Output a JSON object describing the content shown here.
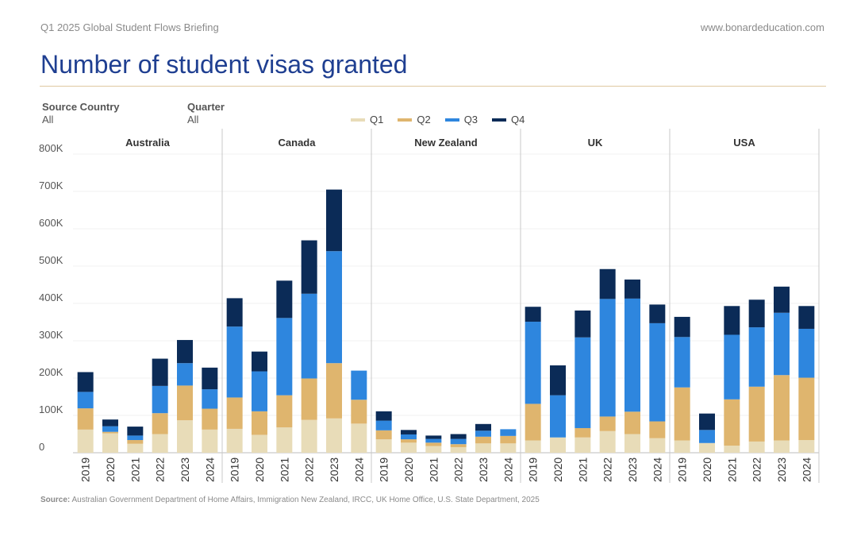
{
  "header": {
    "report_title": "Q1 2025 Global Student Flows Briefing",
    "website": "www.bonardeducation.com",
    "page_title": "Number of student visas granted"
  },
  "filters": [
    {
      "label": "Source Country",
      "value": "All"
    },
    {
      "label": "Quarter",
      "value": "All"
    }
  ],
  "colors": {
    "Q1": "#e8dcb8",
    "Q2": "#dfb56e",
    "Q3": "#2e86de",
    "Q4": "#0b2b57",
    "title": "#1f3f91",
    "rule": "#dfc9a0"
  },
  "source": {
    "label": "Source:",
    "text": "Australian Government Department of Home Affairs, Immigration New Zealand, IRCC, UK Home Office, U.S. State Department, 2025"
  },
  "chart_data": {
    "type": "bar",
    "stacked": true,
    "ylim": [
      0,
      800000
    ],
    "yticks": [
      {
        "value": 0,
        "label": "0"
      },
      {
        "value": 100000,
        "label": "100K"
      },
      {
        "value": 200000,
        "label": "200K"
      },
      {
        "value": 300000,
        "label": "300K"
      },
      {
        "value": 400000,
        "label": "400K"
      },
      {
        "value": 500000,
        "label": "500K"
      },
      {
        "value": 600000,
        "label": "600K"
      },
      {
        "value": 700000,
        "label": "700K"
      },
      {
        "value": 800000,
        "label": "800K"
      }
    ],
    "legend": [
      "Q1",
      "Q2",
      "Q3",
      "Q4"
    ],
    "legend_position": "top",
    "panels": [
      {
        "name": "Australia",
        "years": [
          "2019",
          "2020",
          "2021",
          "2022",
          "2023",
          "2024"
        ],
        "Q1": [
          62000,
          52000,
          24000,
          50000,
          87000,
          62000
        ],
        "Q2": [
          57000,
          4000,
          10000,
          56000,
          93000,
          56000
        ],
        "Q3": [
          44000,
          15000,
          12000,
          73000,
          60000,
          52000
        ],
        "Q4": [
          53000,
          18000,
          24000,
          73000,
          62000,
          58000
        ]
      },
      {
        "name": "Canada",
        "years": [
          "2019",
          "2020",
          "2021",
          "2022",
          "2023",
          "2024"
        ],
        "Q1": [
          64000,
          48000,
          68000,
          88000,
          92000,
          78000
        ],
        "Q2": [
          84000,
          63000,
          86000,
          111000,
          148000,
          64000
        ],
        "Q3": [
          190000,
          107000,
          207000,
          227000,
          300000,
          78000
        ],
        "Q4": [
          76000,
          53000,
          100000,
          143000,
          165000,
          0
        ]
      },
      {
        "name": "New Zealand",
        "years": [
          "2019",
          "2020",
          "2021",
          "2022",
          "2023",
          "2024"
        ],
        "Q1": [
          36000,
          27000,
          18000,
          15000,
          25000,
          25000
        ],
        "Q2": [
          24000,
          9000,
          9000,
          8000,
          18000,
          20000
        ],
        "Q3": [
          26000,
          13000,
          10000,
          14000,
          16000,
          18000
        ],
        "Q4": [
          25000,
          12000,
          9000,
          13000,
          18000,
          0
        ]
      },
      {
        "name": "UK",
        "years": [
          "2019",
          "2020",
          "2021",
          "2022",
          "2023",
          "2024"
        ],
        "Q1": [
          33000,
          41000,
          41000,
          58000,
          50000,
          39000
        ],
        "Q2": [
          98000,
          0,
          25000,
          39000,
          60000,
          45000
        ],
        "Q3": [
          220000,
          113000,
          243000,
          315000,
          303000,
          263000
        ],
        "Q4": [
          40000,
          80000,
          72000,
          80000,
          51000,
          50000
        ]
      },
      {
        "name": "USA",
        "years": [
          "2019",
          "2020",
          "2021",
          "2022",
          "2023",
          "2024"
        ],
        "Q1": [
          33000,
          26000,
          19000,
          30000,
          33000,
          34000
        ],
        "Q2": [
          142000,
          0,
          124000,
          147000,
          175000,
          167000
        ],
        "Q3": [
          135000,
          35000,
          173000,
          159000,
          167000,
          131000
        ],
        "Q4": [
          54000,
          44000,
          77000,
          74000,
          70000,
          61000
        ]
      }
    ]
  }
}
